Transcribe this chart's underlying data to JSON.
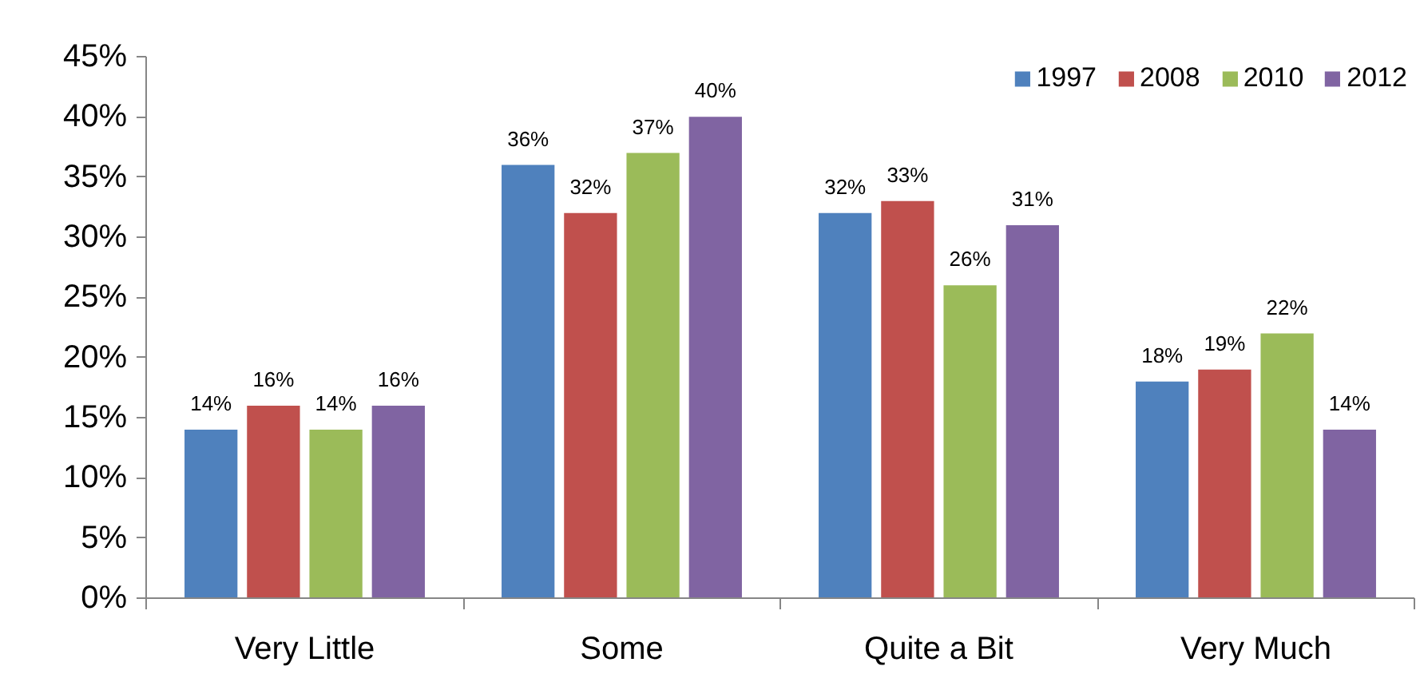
{
  "chart_data": {
    "type": "bar",
    "categories": [
      "Very Little",
      "Some",
      "Quite a Bit",
      "Very Much"
    ],
    "series": [
      {
        "name": "1997",
        "color": "#4f81bd",
        "values": [
          14,
          36,
          32,
          18
        ],
        "value_labels": [
          "14%",
          "36%",
          "32%",
          "18%"
        ]
      },
      {
        "name": "2008",
        "color": "#c0504d",
        "values": [
          16,
          32,
          33,
          19
        ],
        "value_labels": [
          "16%",
          "32%",
          "33%",
          "19%"
        ]
      },
      {
        "name": "2010",
        "color": "#9bbb59",
        "values": [
          14,
          37,
          26,
          22
        ],
        "value_labels": [
          "14%",
          "37%",
          "26%",
          "22%"
        ]
      },
      {
        "name": "2012",
        "color": "#8064a2",
        "values": [
          16,
          40,
          31,
          14
        ],
        "value_labels": [
          "16%",
          "40%",
          "31%",
          "14%"
        ]
      }
    ],
    "ylim": [
      0,
      45
    ],
    "yticks": [
      {
        "value": 0,
        "label": "0%"
      },
      {
        "value": 5,
        "label": "5%"
      },
      {
        "value": 10,
        "label": "10%"
      },
      {
        "value": 15,
        "label": "15%"
      },
      {
        "value": 20,
        "label": "20%"
      },
      {
        "value": 25,
        "label": "25%"
      },
      {
        "value": 30,
        "label": "30%"
      },
      {
        "value": 35,
        "label": "35%"
      },
      {
        "value": 40,
        "label": "40%"
      },
      {
        "value": 45,
        "label": "45%"
      }
    ],
    "grid": false,
    "legend": "top right"
  }
}
